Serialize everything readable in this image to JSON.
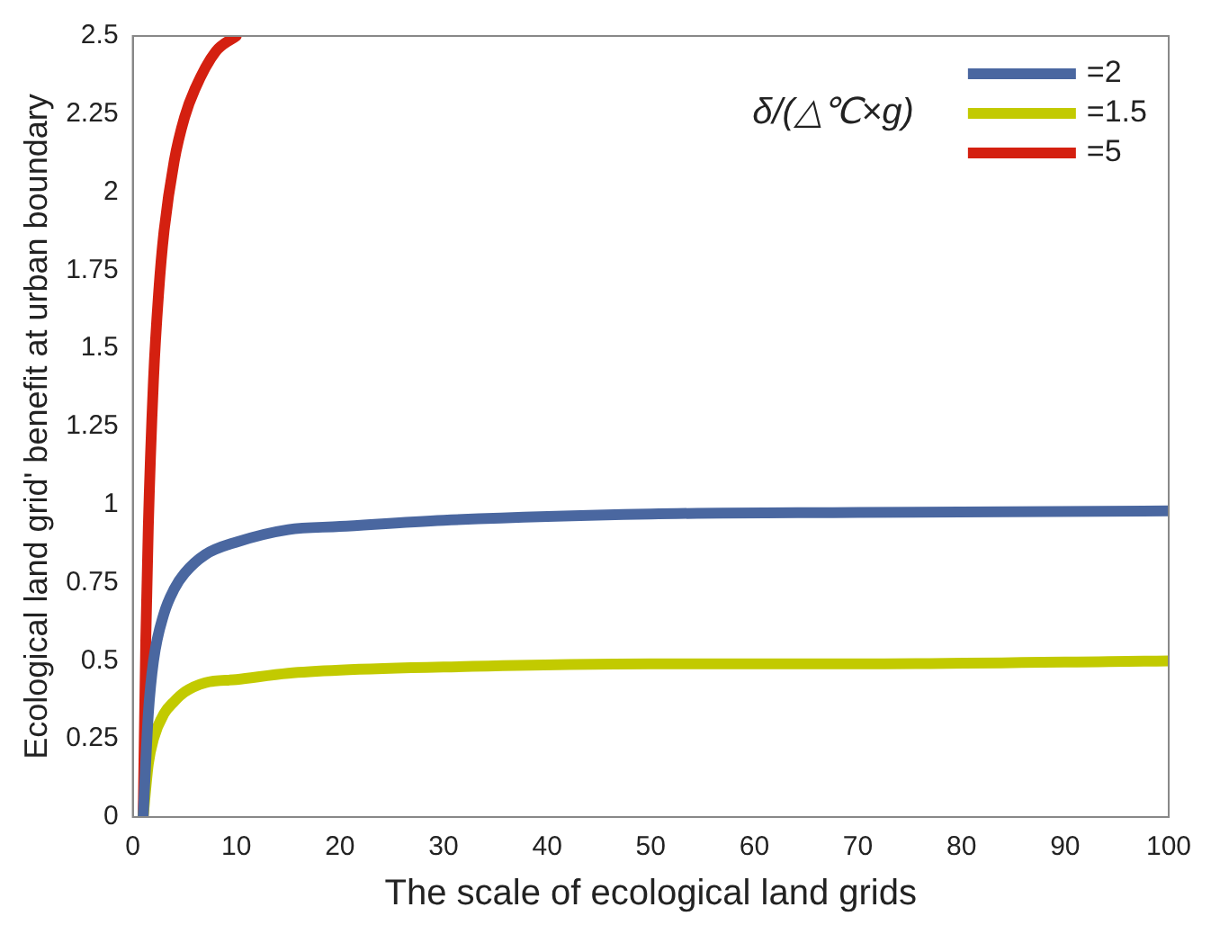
{
  "chart_data": {
    "type": "line",
    "xlabel": "The scale of ecological land grids",
    "ylabel": "Ecological land grid' benefit at urban boundary",
    "legend_title": "δ/(△℃×g)",
    "legend": "top right",
    "grid": false,
    "marker": "none",
    "line_style": "solid",
    "xlim": [
      0,
      100
    ],
    "xticks": [
      0,
      10,
      20,
      30,
      40,
      50,
      60,
      70,
      80,
      90,
      100
    ],
    "ylim": [
      0,
      2.5
    ],
    "yticks": [
      0,
      0.25,
      0.5,
      0.75,
      1,
      1.25,
      1.5,
      1.75,
      2,
      2.25,
      2.5
    ],
    "series": [
      {
        "name": "=2",
        "color": "#4a67a0",
        "x": [
          1,
          1.5,
          2,
          3,
          4,
          5,
          7,
          10,
          15,
          20,
          30,
          50,
          70,
          100
        ],
        "values": [
          0,
          0.33,
          0.5,
          0.65,
          0.73,
          0.78,
          0.84,
          0.88,
          0.92,
          0.93,
          0.95,
          0.97,
          0.975,
          0.98
        ]
      },
      {
        "name": "=1.5",
        "color": "#c2ca00",
        "x": [
          1,
          1.5,
          2,
          3,
          4,
          5,
          7,
          10,
          15,
          20,
          30,
          50,
          70,
          100
        ],
        "values": [
          0,
          0.17,
          0.25,
          0.33,
          0.37,
          0.4,
          0.43,
          0.44,
          0.46,
          0.47,
          0.48,
          0.49,
          0.49,
          0.5
        ]
      },
      {
        "name": "=5",
        "color": "#d42010",
        "x": [
          1,
          1.25,
          1.5,
          2,
          2.5,
          3,
          4,
          5,
          6,
          8,
          10
        ],
        "values": [
          0,
          0.56,
          0.93,
          1.4,
          1.68,
          1.87,
          2.1,
          2.24,
          2.33,
          2.45,
          2.5
        ]
      }
    ]
  }
}
